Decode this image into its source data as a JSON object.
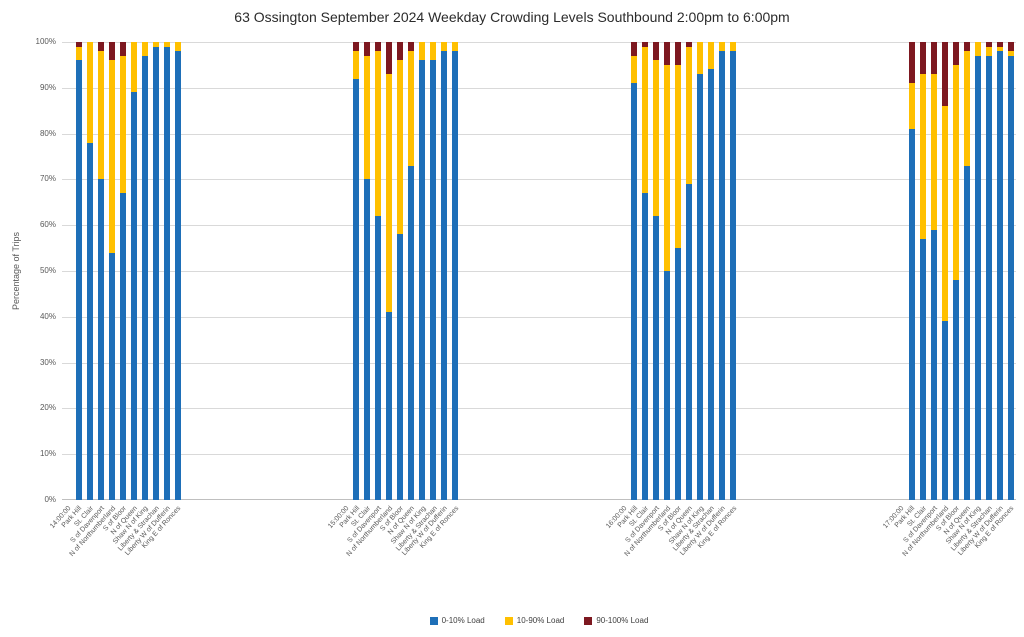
{
  "chart_data": {
    "type": "bar",
    "stacked": true,
    "title": "63 Ossington September 2024  Weekday Crowding Levels Southbound 2:00pm to 6:00pm",
    "ylabel": "Percentage of Trips",
    "ylim": [
      0,
      100
    ],
    "yticks": [
      "0%",
      "10%",
      "20%",
      "30%",
      "40%",
      "50%",
      "60%",
      "70%",
      "80%",
      "90%",
      "100%"
    ],
    "grid": true,
    "legend_position": "bottom",
    "series_names": [
      "0-10% Load",
      "10-90% Load",
      "90-100% Load"
    ],
    "colors": {
      "load_0_10": "#1E6FB8",
      "load_10_90": "#FFC000",
      "load_90_100": "#7D1820",
      "grid": "#D9D9D9",
      "axis_line": "#BFBFBF",
      "axis_text": "#595959",
      "title_text": "#2B2B2B"
    },
    "stops": [
      "Park Hill",
      "St. Clair",
      "S of Davenport",
      "N of Northumberland",
      "S of Bloor",
      "N of Queen",
      "Shaw N of King",
      "Liberty & Strachan",
      "Liberty W of Dufferin",
      "King E of Ronces"
    ],
    "groups": [
      {
        "time": "14:00:00",
        "load_0_10": [
          96,
          78,
          70,
          54,
          67,
          89,
          97,
          99,
          99,
          98
        ],
        "load_10_90": [
          3,
          22,
          28,
          42,
          30,
          11,
          3,
          1,
          1,
          2
        ],
        "load_90_100": [
          1,
          0,
          2,
          4,
          3,
          0,
          0,
          0,
          0,
          0
        ]
      },
      {
        "time": "15:00:00",
        "load_0_10": [
          92,
          70,
          62,
          41,
          58,
          73,
          96,
          96,
          98,
          98
        ],
        "load_10_90": [
          6,
          27,
          36,
          52,
          38,
          25,
          4,
          4,
          2,
          2
        ],
        "load_90_100": [
          2,
          3,
          2,
          7,
          4,
          2,
          0,
          0,
          0,
          0
        ]
      },
      {
        "time": "16:00:00",
        "load_0_10": [
          91,
          67,
          62,
          50,
          55,
          69,
          93,
          94,
          98,
          98
        ],
        "load_10_90": [
          6,
          32,
          34,
          45,
          40,
          30,
          7,
          6,
          2,
          2
        ],
        "load_90_100": [
          3,
          1,
          4,
          5,
          5,
          1,
          0,
          0,
          0,
          0
        ]
      },
      {
        "time": "17:00:00",
        "load_0_10": [
          81,
          57,
          59,
          39,
          48,
          73,
          97,
          97,
          98,
          97
        ],
        "load_10_90": [
          10,
          36,
          34,
          47,
          47,
          25,
          3,
          2,
          1,
          1
        ],
        "load_90_100": [
          9,
          7,
          7,
          14,
          5,
          2,
          0,
          1,
          1,
          2
        ]
      }
    ]
  }
}
